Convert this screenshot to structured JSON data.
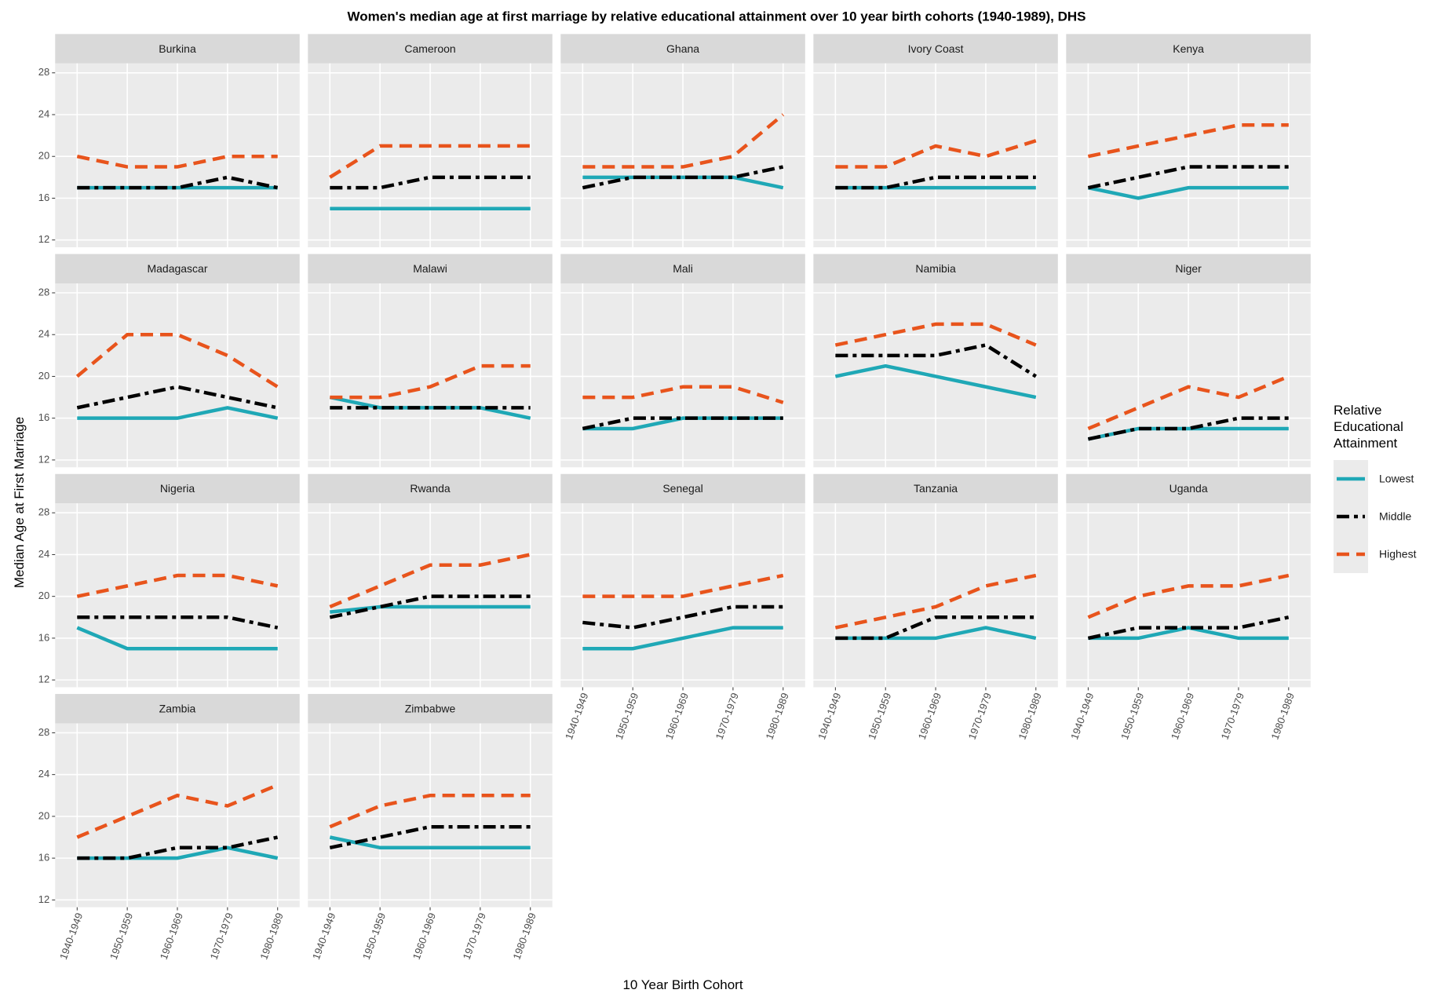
{
  "chart_data": {
    "type": "line",
    "title": "Women's median age at first marriage by relative educational attainment over 10 year birth cohorts (1940-1989), DHS",
    "x_label": "10 Year Birth Cohort",
    "y_label": "Median Age at First Marriage",
    "legend_title": "Relative Educational Attainment",
    "categories": [
      "1940-1949",
      "1950-1959",
      "1960-1969",
      "1970-1979",
      "1980-1989"
    ],
    "ylim": [
      11.3,
      28.9
    ],
    "yticks": [
      12,
      16,
      20,
      24,
      28
    ],
    "grid": true,
    "series": [
      {
        "name": "Lowest",
        "color": "#1fa8b6",
        "dash": "solid"
      },
      {
        "name": "Middle",
        "color": "#000000",
        "dash": "dashdot"
      },
      {
        "name": "Highest",
        "color": "#e8541c",
        "dash": "dashed"
      }
    ],
    "facets": [
      {
        "title": "Burkina",
        "values": [
          [
            17,
            17,
            17,
            17,
            17
          ],
          [
            17,
            17,
            17,
            18,
            17
          ],
          [
            20,
            19,
            19,
            20,
            20
          ]
        ]
      },
      {
        "title": "Cameroon",
        "values": [
          [
            15,
            15,
            15,
            15,
            15
          ],
          [
            17,
            17,
            18,
            18,
            18
          ],
          [
            18,
            21,
            21,
            21,
            21
          ]
        ]
      },
      {
        "title": "Ghana",
        "values": [
          [
            18,
            18,
            18,
            18,
            17
          ],
          [
            17,
            18,
            18,
            18,
            19
          ],
          [
            19,
            19,
            19,
            20,
            24
          ]
        ]
      },
      {
        "title": "Ivory Coast",
        "values": [
          [
            17,
            17,
            17,
            17,
            17
          ],
          [
            17,
            17,
            18,
            18,
            18
          ],
          [
            19,
            19,
            21,
            20,
            21.5
          ]
        ]
      },
      {
        "title": "Kenya",
        "values": [
          [
            17,
            16,
            17,
            17,
            17
          ],
          [
            17,
            18,
            19,
            19,
            19
          ],
          [
            20,
            21,
            22,
            23,
            23
          ]
        ]
      },
      {
        "title": "Madagascar",
        "values": [
          [
            16,
            16,
            16,
            17,
            16
          ],
          [
            17,
            18,
            19,
            18,
            17
          ],
          [
            20,
            24,
            24,
            22,
            19
          ]
        ]
      },
      {
        "title": "Malawi",
        "values": [
          [
            18,
            17,
            17,
            17,
            16
          ],
          [
            17,
            17,
            17,
            17,
            17
          ],
          [
            18,
            18,
            19,
            21,
            21
          ]
        ]
      },
      {
        "title": "Mali",
        "values": [
          [
            15,
            15,
            16,
            16,
            16
          ],
          [
            15,
            16,
            16,
            16,
            16
          ],
          [
            18,
            18,
            19,
            19,
            17.5
          ]
        ]
      },
      {
        "title": "Namibia",
        "values": [
          [
            20,
            21,
            20,
            19,
            18
          ],
          [
            22,
            22,
            22,
            23,
            20
          ],
          [
            23,
            24,
            25,
            25,
            23
          ]
        ]
      },
      {
        "title": "Niger",
        "values": [
          [
            14,
            15,
            15,
            15,
            15
          ],
          [
            14,
            15,
            15,
            16,
            16
          ],
          [
            15,
            17,
            19,
            18,
            20
          ]
        ]
      },
      {
        "title": "Nigeria",
        "values": [
          [
            17,
            15,
            15,
            15,
            15
          ],
          [
            18,
            18,
            18,
            18,
            17
          ],
          [
            20,
            21,
            22,
            22,
            21
          ]
        ]
      },
      {
        "title": "Rwanda",
        "values": [
          [
            18.5,
            19,
            19,
            19,
            19
          ],
          [
            18,
            19,
            20,
            20,
            20
          ],
          [
            19,
            21,
            23,
            23,
            24
          ]
        ]
      },
      {
        "title": "Senegal",
        "values": [
          [
            15,
            15,
            16,
            17,
            17
          ],
          [
            17.5,
            17,
            18,
            19,
            19
          ],
          [
            20,
            20,
            20,
            21,
            22
          ]
        ]
      },
      {
        "title": "Tanzania",
        "values": [
          [
            16,
            16,
            16,
            17,
            16
          ],
          [
            16,
            16,
            18,
            18,
            18
          ],
          [
            17,
            18,
            19,
            21,
            22
          ]
        ]
      },
      {
        "title": "Uganda",
        "values": [
          [
            16,
            16,
            17,
            16,
            16
          ],
          [
            16,
            17,
            17,
            17,
            18
          ],
          [
            18,
            20,
            21,
            21,
            22
          ]
        ]
      },
      {
        "title": "Zambia",
        "values": [
          [
            16,
            16,
            16,
            17,
            16
          ],
          [
            16,
            16,
            17,
            17,
            18
          ],
          [
            18,
            20,
            22,
            21,
            23
          ]
        ]
      },
      {
        "title": "Zimbabwe",
        "values": [
          [
            18,
            17,
            17,
            17,
            17
          ],
          [
            17,
            18,
            19,
            19,
            19
          ],
          [
            19,
            21,
            22,
            22,
            22
          ]
        ]
      }
    ]
  }
}
